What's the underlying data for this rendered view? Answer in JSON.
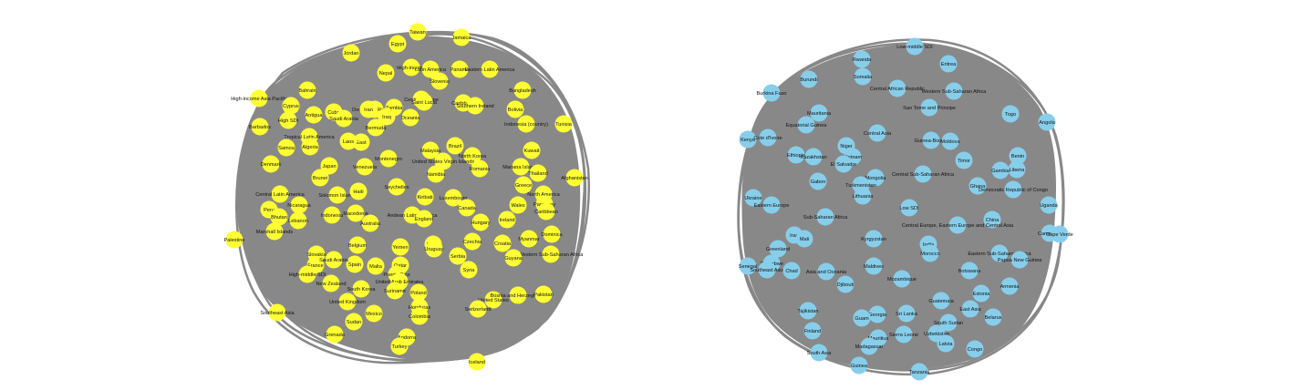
{
  "colors": {
    "background": "#ffffff",
    "edges": "#888888",
    "left_nodes": "#ffff33",
    "right_nodes": "#87ceeb",
    "label_text": "#111111"
  },
  "networks": {
    "left": {
      "nodes": [
        "Taiwan",
        "Jamaica",
        "Egypt",
        "Jordan",
        "Nepal",
        "High-income",
        "Latin America",
        "Panama",
        "Eastern Latin America",
        "Slovenia",
        "Bangladesh",
        "High-income Asia Pacific",
        "Bahrain",
        "Dominican Republic",
        "Zambia",
        "Central Europe",
        "Saint Lucia",
        "Caribbean",
        "Southern Ireland",
        "Bolivia",
        "Cyprus",
        "Antigua",
        "Cuba",
        "Iran",
        "Iraq",
        "Oceania",
        "Saudi Arabia",
        "Indonesia (country)",
        "Tunisia",
        "High SDI",
        "Barbados",
        "Bermuda",
        "Tropical Latin America",
        "East",
        "Laos",
        "Samoa",
        "Algeria",
        "Malaysia",
        "Brazil",
        "North Korea",
        "Kuwait",
        "Mariana Islands",
        "Thailand",
        "Afghanistan",
        "Japan",
        "Venezuela",
        "Montenegro",
        "United States Virgin Islands",
        "Denmark",
        "Brunei",
        "Namibia",
        "Romania",
        "Greece",
        "Central Latin America",
        "Nicaragua",
        "Solomon Islands",
        "Haiti",
        "Seychelles",
        "Kiribati",
        "Luxembourg",
        "North America",
        "Paraguay",
        "Peru",
        "Bhutan",
        "Lebanon",
        "Marshall Islands",
        "Indonesia",
        "Macedonia",
        "Australia",
        "Andean Latin America",
        "England",
        "Canada",
        "Hungary",
        "Wales",
        "Caribbean",
        "Ireland",
        "Dominica",
        "Myanmar",
        "Palestine",
        "Slovakia",
        "Belgium",
        "Yemen",
        "World",
        "Czechia",
        "Croatia",
        "Western Sub-Saharan Africa",
        "Guyana",
        "France",
        "Spain",
        "Saudi Arabia",
        "Malta",
        "Qatar",
        "Uruguay",
        "Serbia",
        "Syria",
        "High-middle SDI",
        "New Zealand",
        "Puerto Rico",
        "United Arab Emirates",
        "South Korea",
        "Suriname",
        "Poland",
        "United States",
        "Bosnia and Herzegovina",
        "Pakistan",
        "Southeast Asia",
        "United Kingdom",
        "Mexico",
        "Honduras",
        "Switzerland",
        "Colombia",
        "Sudan",
        "Grenada",
        "Andorra",
        "Turkey",
        "Iceland"
      ]
    },
    "right": {
      "nodes": [
        "Low-middle SDI",
        "Rwanda",
        "Eritrea",
        "Burundi",
        "Somalia",
        "Central African Republic",
        "Western Sub-Saharan Africa",
        "Burkina Faso",
        "Sao Tome and Principe",
        "Mauritania",
        "Togo",
        "Angola",
        "Equatorial Guinea",
        "Kenya",
        "Cote d'Ivoire",
        "Central Asia",
        "Niger",
        "Guinea-Bissau",
        "Moldova",
        "Ethiopia",
        "Kazakhstan",
        "Vietnam",
        "El Salvador",
        "Timor",
        "Benin",
        "Liberia",
        "Mongolia",
        "Gambia",
        "Central Sub-Saharan Africa",
        "Turkmenistan",
        "Gabon",
        "Ghana",
        "Democratic Republic of Congo",
        "Lithuania",
        "Ukraine",
        "Eastern Europe",
        "Uganda",
        "Low SDI",
        "China",
        "Sub-Saharan Africa",
        "Central Europe, Eastern Europe and Central Asia",
        "Cameroon",
        "Cape Verde",
        "Iran",
        "India",
        "Mali",
        "Kyrgyzstan",
        "Greenland",
        "Eastern Sub-Saharan Africa",
        "Papua New Guinea",
        "Senegal",
        "Zimbabwe",
        "Southeast Asia",
        "Chad",
        "Asia and Oceania",
        "Maldives",
        "Morocco",
        "Mozambique",
        "Botswana",
        "Djibouti",
        "Armenia",
        "Guatemala",
        "Tajikistan",
        "Estonia",
        "Georgia",
        "Sri Lanka",
        "East Asia",
        "Guam",
        "Belarus",
        "South Sudan",
        "Finland",
        "Mauritius",
        "Madagascar",
        "Sierra Leone",
        "Uzbekistan",
        "Latvia",
        "Congo",
        "South Asia",
        "Guinea",
        "Tanzania"
      ]
    }
  }
}
